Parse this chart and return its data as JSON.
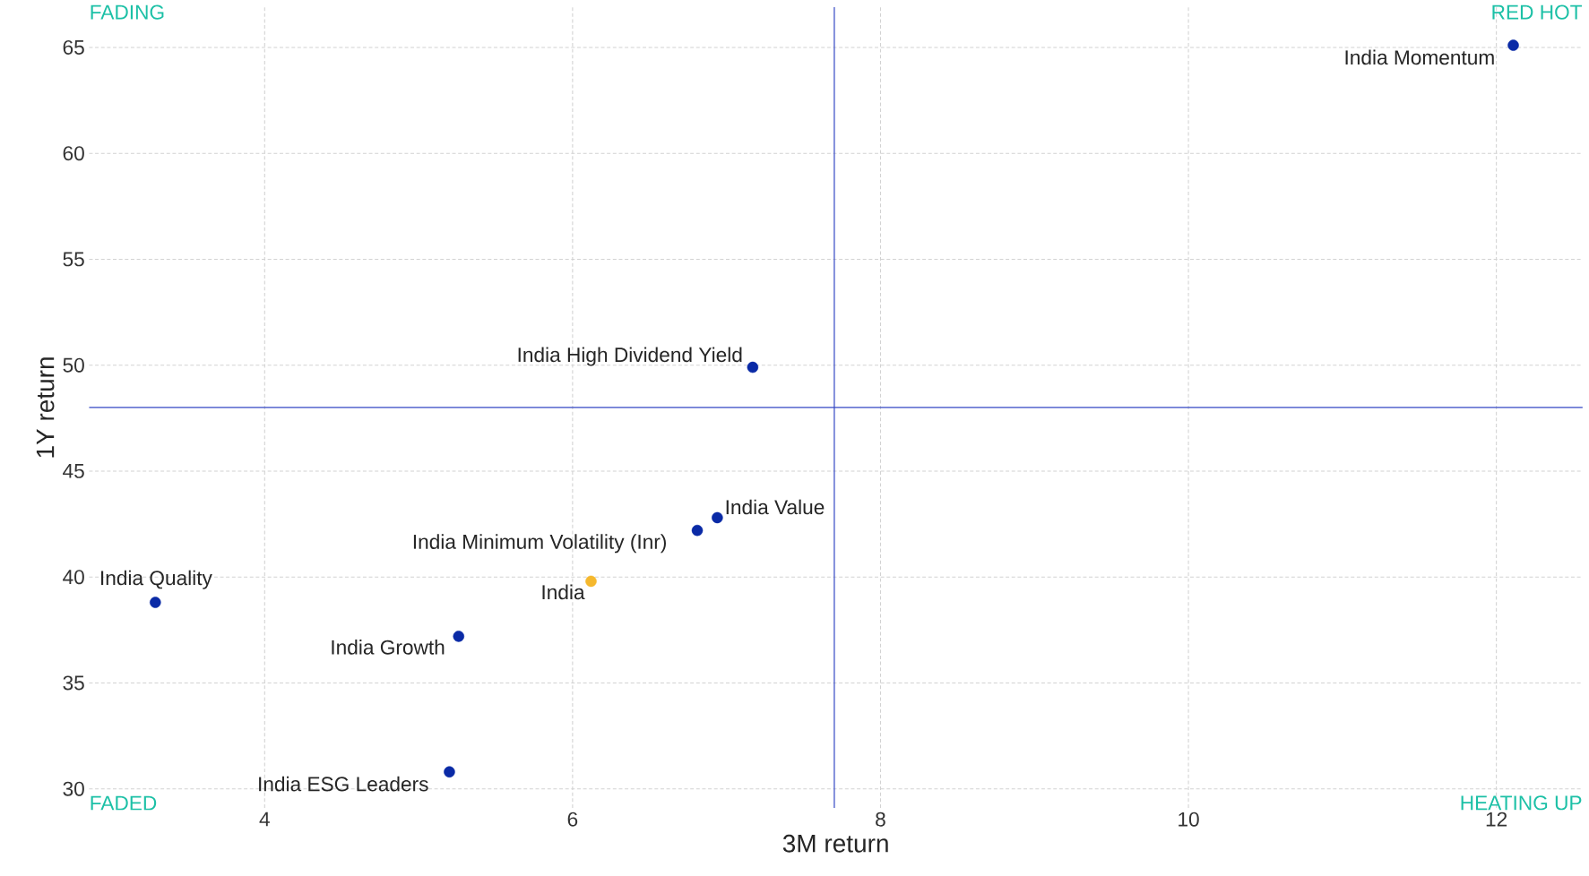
{
  "chart_data": {
    "type": "scatter",
    "xlabel": "3M return",
    "ylabel": "1Y return",
    "xlim": [
      2.86,
      12.56
    ],
    "ylim": [
      29.1,
      66.9
    ],
    "xticks": [
      4,
      6,
      8,
      10,
      12
    ],
    "yticks": [
      30,
      35,
      40,
      45,
      50,
      55,
      60,
      65
    ],
    "grid": true,
    "marker": "circle",
    "annotations": [
      "FADING",
      "RED HOT",
      "FADED",
      "HEATING UP"
    ],
    "ref_lines": [
      {
        "axis": "x",
        "value": 7.7,
        "color": "#3347c4"
      },
      {
        "axis": "y",
        "value": 48,
        "color": "#3347c4"
      }
    ],
    "series": [
      {
        "name": "India Momentum",
        "color": "#0a2aa6",
        "x": [
          12.11
        ],
        "values": [
          65.1
        ]
      },
      {
        "name": "India High Dividend Yield",
        "color": "#0a2aa6",
        "x": [
          7.17
        ],
        "values": [
          49.9
        ]
      },
      {
        "name": "India Value",
        "color": "#0a2aa6",
        "x": [
          6.94
        ],
        "values": [
          42.8
        ]
      },
      {
        "name": "India Minimum Volatility (Inr)",
        "color": "#0a2aa6",
        "x": [
          6.81
        ],
        "values": [
          42.2
        ]
      },
      {
        "name": "India",
        "color": "#f5b82e",
        "x": [
          6.12
        ],
        "values": [
          39.8
        ]
      },
      {
        "name": "India Quality",
        "color": "#0a2aa6",
        "x": [
          3.29
        ],
        "values": [
          38.8
        ]
      },
      {
        "name": "India Growth",
        "color": "#0a2aa6",
        "x": [
          5.26
        ],
        "values": [
          37.2
        ]
      },
      {
        "name": "India ESG Leaders",
        "color": "#0a2aa6",
        "x": [
          5.2
        ],
        "values": [
          30.8
        ]
      }
    ]
  }
}
